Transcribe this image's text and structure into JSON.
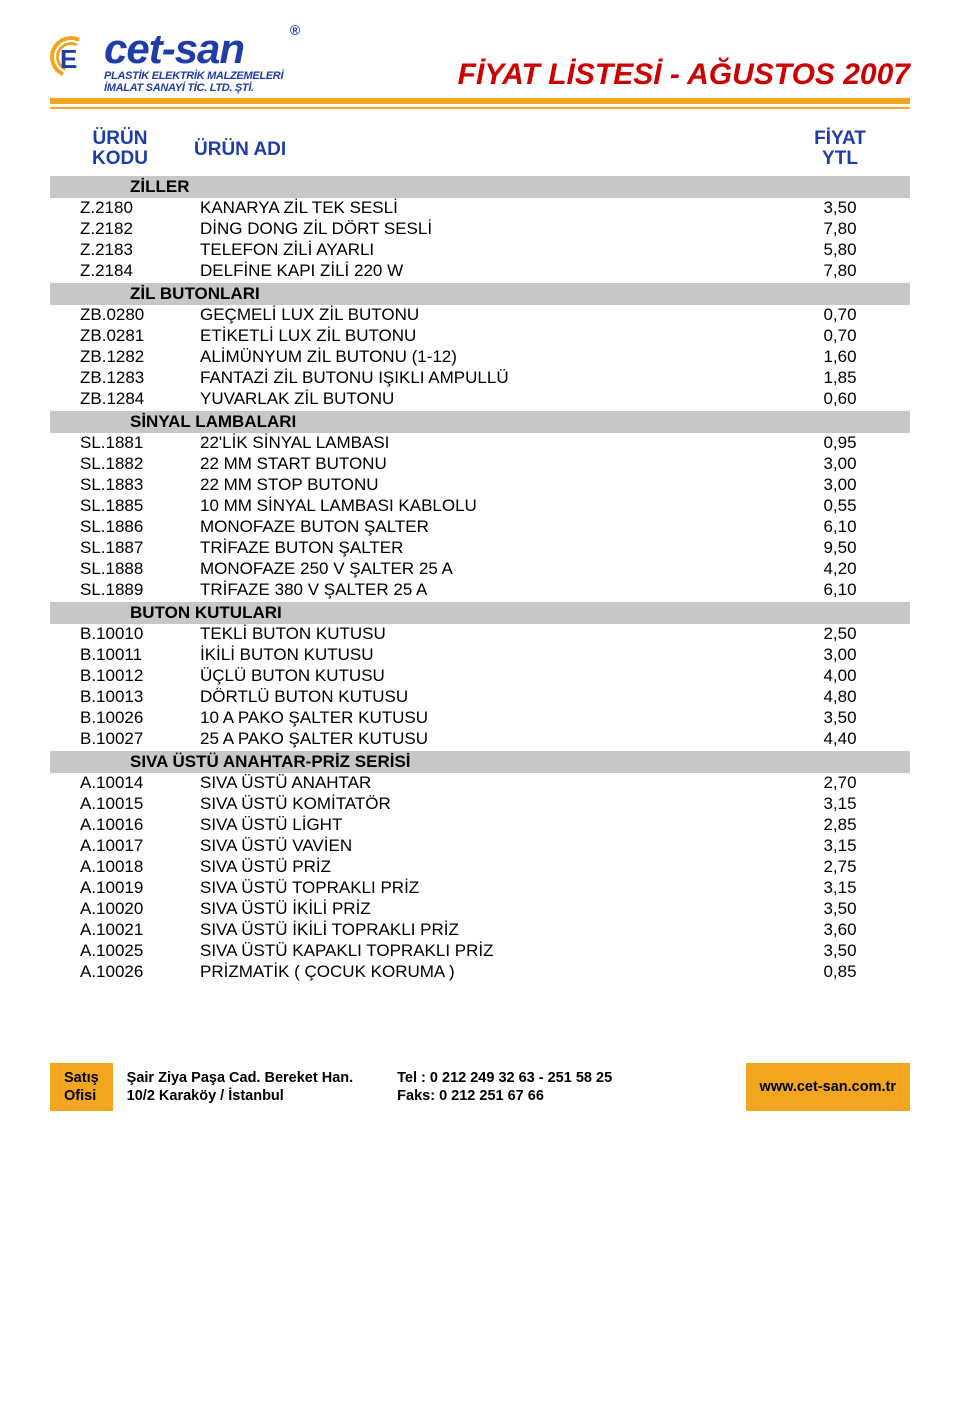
{
  "brand": {
    "name": "cet-san",
    "reg": "®",
    "subline": "PLASTİK ELEKTRİK MALZEMELERİ\nİMALAT SANAYİ TİC. LTD. ŞTİ."
  },
  "doc_title": "FİYAT LİSTESİ - AĞUSTOS 2007",
  "columns": {
    "code_l1": "ÜRÜN",
    "code_l2": "KODU",
    "name": "ÜRÜN ADI",
    "price_l1": "FİYAT",
    "price_l2": "YTL"
  },
  "sections": [
    {
      "title": "ZİLLER",
      "rows": [
        {
          "code": "Z.2180",
          "name": "KANARYA ZİL TEK SESLİ",
          "price": "3,50"
        },
        {
          "code": "Z.2182",
          "name": "DİNG DONG ZİL DÖRT SESLİ",
          "price": "7,80"
        },
        {
          "code": "Z.2183",
          "name": "TELEFON ZİLİ AYARLI",
          "price": "5,80"
        },
        {
          "code": "Z.2184",
          "name": "DELFİNE KAPI ZİLİ 220 W",
          "price": "7,80"
        }
      ]
    },
    {
      "title": "ZİL BUTONLARI",
      "rows": [
        {
          "code": "ZB.0280",
          "name": "GEÇMELİ LUX ZİL BUTONU",
          "price": "0,70"
        },
        {
          "code": "ZB.0281",
          "name": "ETİKETLİ LUX ZİL BUTONU",
          "price": "0,70"
        },
        {
          "code": "ZB.1282",
          "name": "ALİMÜNYUM ZİL BUTONU (1-12)",
          "price": "1,60"
        },
        {
          "code": "ZB.1283",
          "name": "FANTAZİ ZİL BUTONU IŞIKLI AMPULLÜ",
          "price": "1,85"
        },
        {
          "code": "ZB.1284",
          "name": "YUVARLAK ZİL BUTONU",
          "price": "0,60"
        }
      ]
    },
    {
      "title": "SİNYAL LAMBALARI",
      "rows": [
        {
          "code": "SL.1881",
          "name": "22'LİK SİNYAL LAMBASI",
          "price": "0,95"
        },
        {
          "code": "SL.1882",
          "name": "22 MM START BUTONU",
          "price": "3,00"
        },
        {
          "code": "SL.1883",
          "name": "22 MM STOP BUTONU",
          "price": "3,00"
        },
        {
          "code": "SL.1885",
          "name": "10 MM SİNYAL LAMBASI KABLOLU",
          "price": "0,55"
        },
        {
          "code": "SL.1886",
          "name": "MONOFAZE BUTON ŞALTER",
          "price": "6,10"
        },
        {
          "code": "SL.1887",
          "name": "TRİFAZE BUTON ŞALTER",
          "price": "9,50"
        },
        {
          "code": "SL.1888",
          "name": "MONOFAZE 250 V  ŞALTER 25 A",
          "price": "4,20"
        },
        {
          "code": "SL.1889",
          "name": "TRİFAZE 380 V ŞALTER 25 A",
          "price": "6,10"
        }
      ]
    },
    {
      "title": "BUTON KUTULARI",
      "rows": [
        {
          "code": "B.10010",
          "name": "TEKLİ BUTON KUTUSU",
          "price": "2,50"
        },
        {
          "code": "B.10011",
          "name": "İKİLİ BUTON KUTUSU",
          "price": "3,00"
        },
        {
          "code": "B.10012",
          "name": "ÜÇLÜ BUTON KUTUSU",
          "price": "4,00"
        },
        {
          "code": "B.10013",
          "name": "DÖRTLÜ BUTON KUTUSU",
          "price": "4,80"
        },
        {
          "code": "B.10026",
          "name": "10 A PAKO ŞALTER KUTUSU",
          "price": "3,50"
        },
        {
          "code": "B.10027",
          "name": "25 A PAKO ŞALTER KUTUSU",
          "price": "4,40"
        }
      ]
    },
    {
      "title": "SIVA ÜSTÜ ANAHTAR-PRİZ SERİSİ",
      "rows": [
        {
          "code": "A.10014",
          "name": "SIVA ÜSTÜ ANAHTAR",
          "price": "2,70"
        },
        {
          "code": "A.10015",
          "name": "SIVA ÜSTÜ KOMİTATÖR",
          "price": "3,15"
        },
        {
          "code": "A.10016",
          "name": "SIVA ÜSTÜ LİGHT",
          "price": "2,85"
        },
        {
          "code": "A.10017",
          "name": "SIVA ÜSTÜ VAVİEN",
          "price": "3,15"
        },
        {
          "code": "A.10018",
          "name": "SIVA ÜSTÜ PRİZ",
          "price": "2,75"
        },
        {
          "code": "A.10019",
          "name": "SIVA ÜSTÜ TOPRAKLI PRİZ",
          "price": "3,15"
        },
        {
          "code": "A.10020",
          "name": "SIVA ÜSTÜ İKİLİ PRİZ",
          "price": "3,50"
        },
        {
          "code": "A.10021",
          "name": "SIVA ÜSTÜ İKİLİ TOPRAKLI PRİZ",
          "price": "3,60"
        },
        {
          "code": "A.10025",
          "name": "SIVA ÜSTÜ KAPAKLI TOPRAKLI PRİZ",
          "price": "3,50"
        },
        {
          "code": "A.10026",
          "name": "PRİZMATİK ( ÇOCUK KORUMA )",
          "price": "0,85"
        }
      ]
    }
  ],
  "footer": {
    "left_l1": "Satış",
    "left_l2": "Ofisi",
    "addr_l1": "Şair Ziya Paşa Cad. Bereket Han.",
    "addr_l2": "10/2 Karaköy / İstanbul",
    "tel": "Tel   : 0 212 249 32 63 - 251 58 25",
    "fax": "Faks: 0 212 251 67 66",
    "web": "www.cet-san.com.tr"
  },
  "colors": {
    "accent_orange": "#f2a61f",
    "brand_blue": "#1f3da8",
    "title_red": "#cc0000",
    "section_gray": "#c8c7c7",
    "text": "#000000",
    "background": "#ffffff"
  }
}
